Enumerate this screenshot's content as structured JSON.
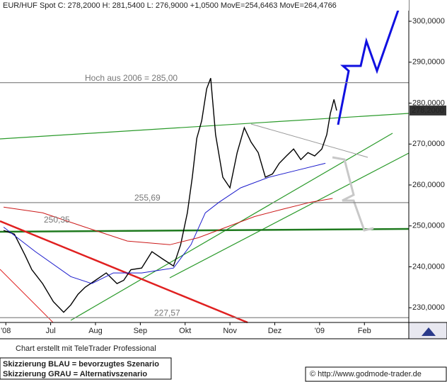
{
  "chart_data": {
    "type": "line",
    "title": "EUR/HUF Spot C: 278,2000 H: 281,5400 L: 276,9000 +1,0500 MovE=254,6463 MovE=264,4766",
    "xlim": [
      -0.13,
      8.99
    ],
    "xticks": [
      {
        "value": 0,
        "label": "'08"
      },
      {
        "value": 1,
        "label": "Jul"
      },
      {
        "value": 2,
        "label": "Aug"
      },
      {
        "value": 3,
        "label": "Sep"
      },
      {
        "value": 4,
        "label": "Okt"
      },
      {
        "value": 5,
        "label": "Nov"
      },
      {
        "value": 6,
        "label": "Dez"
      },
      {
        "value": 7,
        "label": "'09"
      },
      {
        "value": 8,
        "label": "Feb"
      }
    ],
    "ylim": [
      226.4,
      305.2
    ],
    "yticks": [
      {
        "value": 230,
        "label": "230,0000"
      },
      {
        "value": 240,
        "label": "240,0000"
      },
      {
        "value": 250,
        "label": "250,0000"
      },
      {
        "value": 260,
        "label": "260,0000"
      },
      {
        "value": 270,
        "label": "270,0000"
      },
      {
        "value": 280,
        "label": "280,0000"
      },
      {
        "value": 290,
        "label": "290,0000"
      },
      {
        "value": 300,
        "label": "300,0000"
      }
    ],
    "grid": false,
    "series": [
      {
        "color": "#000000",
        "x": [
          -0.05,
          0.19,
          0.43,
          0.58,
          0.82,
          1.06,
          1.29,
          1.45,
          1.61,
          1.77,
          2.0,
          2.24,
          2.48,
          2.63,
          2.79,
          3.03,
          3.26,
          3.5,
          3.74,
          3.9,
          4.05,
          4.16,
          4.26,
          4.37,
          4.48,
          4.57,
          4.68,
          4.84,
          5.0,
          5.16,
          5.32,
          5.47,
          5.63,
          5.79,
          5.95,
          6.1,
          6.26,
          6.42,
          6.58,
          6.74,
          6.89,
          7.05,
          7.16,
          7.24,
          7.32,
          7.38
        ],
        "values": [
          248.9,
          248.0,
          242.8,
          239.3,
          235.9,
          231.5,
          228.9,
          230.7,
          233.3,
          235.0,
          236.7,
          238.5,
          235.9,
          236.7,
          239.3,
          239.7,
          243.7,
          241.9,
          240.2,
          245.4,
          253.2,
          261.9,
          271.4,
          275.7,
          283.5,
          286.1,
          272.3,
          261.9,
          259.3,
          267.9,
          274.0,
          270.5,
          267.9,
          261.9,
          262.7,
          265.3,
          267.1,
          268.8,
          266.2,
          267.9,
          267.1,
          268.8,
          272.3,
          277.5,
          280.9,
          278.2
        ]
      },
      {
        "color": "#1a1acc",
        "x": [
          -0.05,
          0.66,
          1.45,
          1.92,
          2.4,
          3.03,
          3.74,
          4.13,
          4.45,
          4.76,
          5.24,
          5.87,
          6.5,
          7.13
        ],
        "values": [
          249.7,
          243.7,
          237.6,
          235.9,
          238.5,
          238.5,
          239.7,
          245.4,
          253.2,
          255.8,
          259.3,
          261.9,
          263.6,
          265.3
        ]
      },
      {
        "color": "#cc1a1a",
        "x": [
          -0.05,
          0.82,
          1.77,
          2.71,
          3.66,
          4.29,
          4.92,
          5.55,
          6.18,
          6.81,
          7.29
        ],
        "values": [
          254.6,
          253.2,
          249.7,
          246.3,
          245.4,
          247.1,
          249.7,
          252.3,
          254.1,
          255.8,
          256.7
        ]
      }
    ],
    "levels": [
      {
        "value": 285,
        "label": "Hoch aus 2006 = 285,00"
      },
      {
        "value": 255.69,
        "label": "255,69"
      },
      {
        "value": 227.57,
        "label": "227,57"
      }
    ],
    "annotations": [
      {
        "value": 250.35,
        "label": "250,35"
      }
    ],
    "last_price": {
      "value": 278.2,
      "label": "278,2000"
    },
    "footer": {
      "credit": "Chart erstellt mit TeleTrader Professional",
      "legend_blue": "Skizzierung BLAU = bevorzugtes Szenario",
      "legend_gray": "Skizzierung GRAU = Alternativszenario",
      "copyright": "© http://www.godmode-trader.de"
    }
  }
}
